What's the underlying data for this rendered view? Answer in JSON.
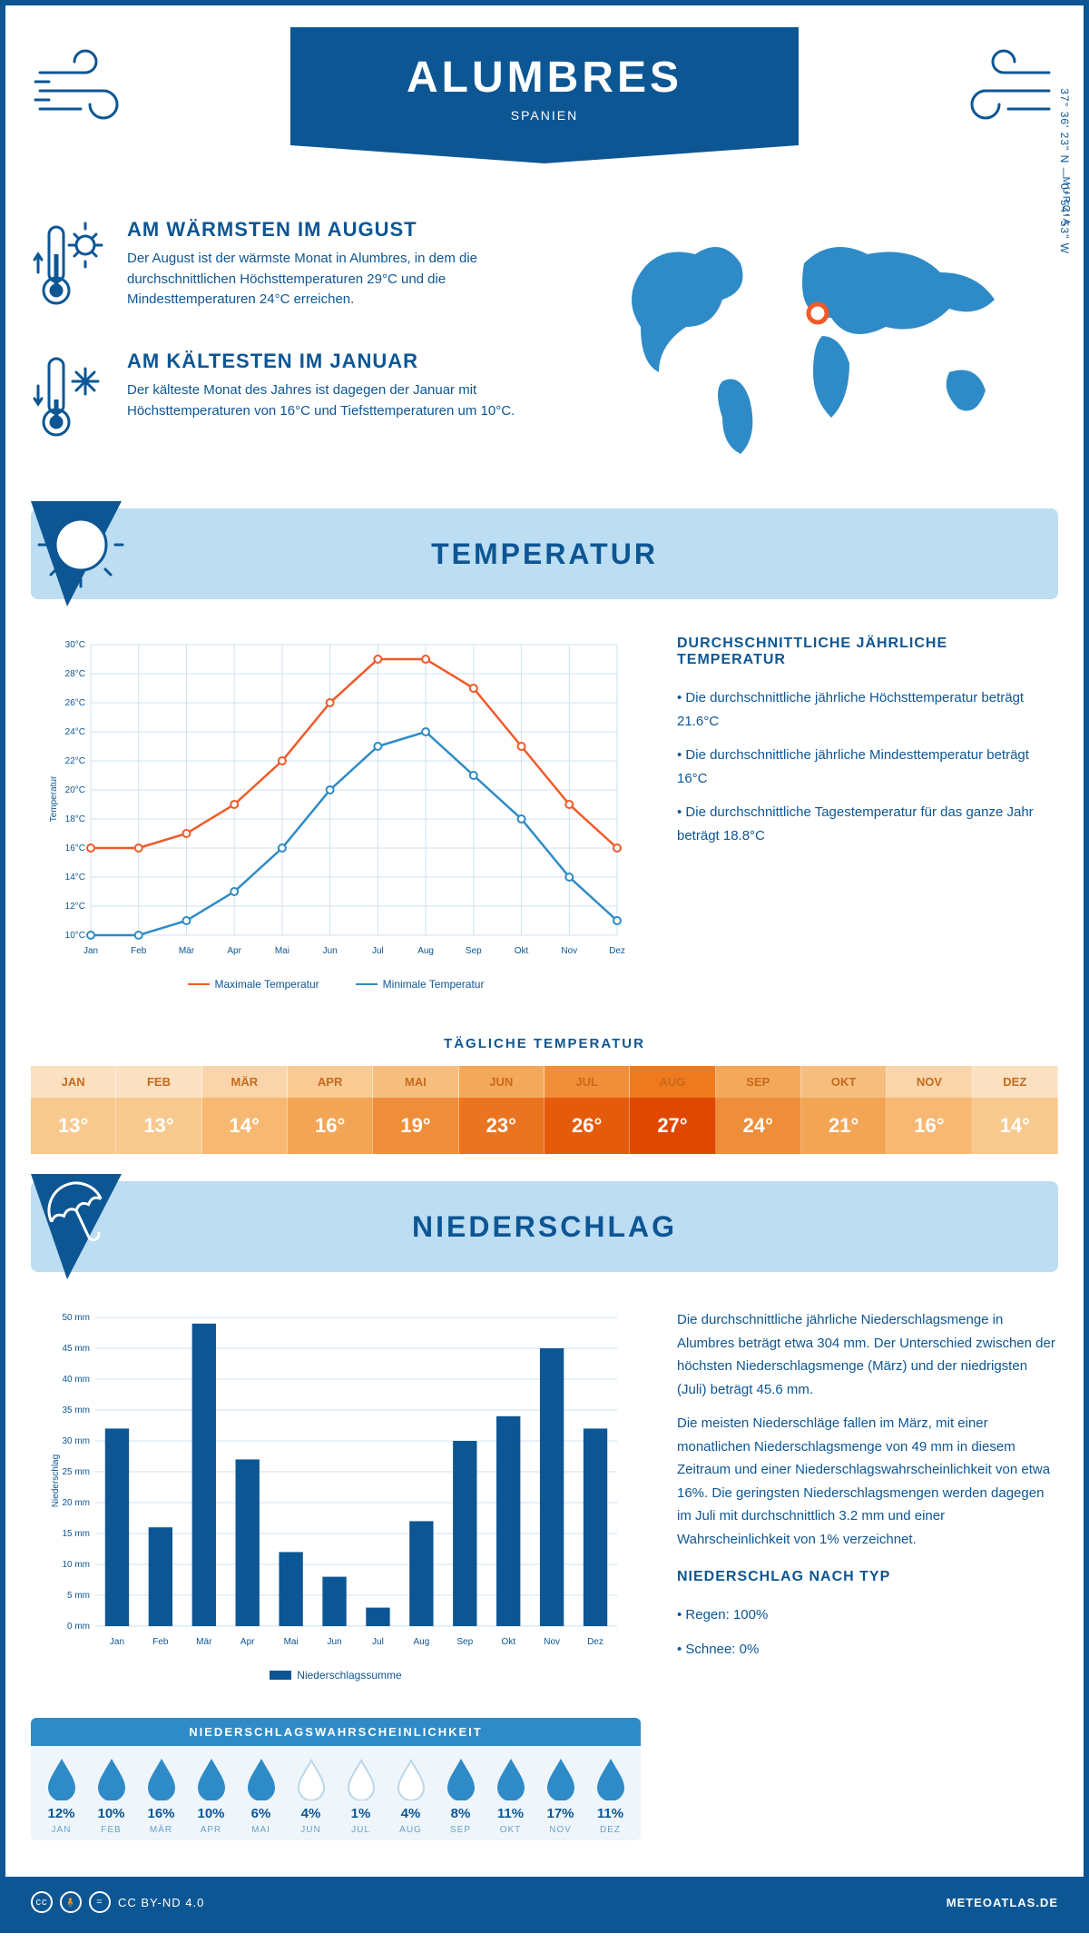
{
  "header": {
    "city": "ALUMBRES",
    "country": "SPANIEN",
    "region": "MURCIA",
    "coords": "37° 36' 23\" N — 0° 54' 53\" W"
  },
  "colors": {
    "primary": "#0d5694",
    "light_blue": "#bcddf2",
    "mid_blue": "#2e8bc7",
    "orange_line": "#f05a28",
    "blue_line": "#2e8bc7",
    "grid": "#d0e0ed"
  },
  "warmest": {
    "title": "AM WÄRMSTEN IM AUGUST",
    "text": "Der August ist der wärmste Monat in Alumbres, in dem die durchschnittlichen Höchsttemperaturen 29°C und die Mindesttemperaturen 24°C erreichen."
  },
  "coldest": {
    "title": "AM KÄLTESTEN IM JANUAR",
    "text": "Der kälteste Monat des Jahres ist dagegen der Januar mit Höchsttemperaturen von 16°C und Tiefsttemperaturen um 10°C."
  },
  "temperature": {
    "section_title": "TEMPERATUR",
    "months": [
      "Jan",
      "Feb",
      "Mär",
      "Apr",
      "Mai",
      "Jun",
      "Jul",
      "Aug",
      "Sep",
      "Okt",
      "Nov",
      "Dez"
    ],
    "max_series": [
      16,
      16,
      17,
      19,
      22,
      26,
      29,
      29,
      27,
      23,
      19,
      16
    ],
    "min_series": [
      10,
      10,
      11,
      13,
      16,
      20,
      23,
      24,
      21,
      18,
      14,
      11
    ],
    "y_axis": {
      "min": 10,
      "max": 30,
      "ticks": [
        10,
        12,
        14,
        16,
        18,
        20,
        22,
        24,
        26,
        28,
        30
      ],
      "tick_labels": [
        "10°C",
        "12°C",
        "14°C",
        "16°C",
        "18°C",
        "20°C",
        "22°C",
        "24°C",
        "26°C",
        "28°C",
        "30°C"
      ]
    },
    "y_label": "Temperatur",
    "legend_max": "Maximale Temperatur",
    "legend_min": "Minimale Temperatur",
    "stats_title": "DURCHSCHNITTLICHE JÄHRLICHE TEMPERATUR",
    "stats": [
      "• Die durchschnittliche jährliche Höchsttemperatur beträgt 21.6°C",
      "• Die durchschnittliche jährliche Mindesttemperatur beträgt 16°C",
      "• Die durchschnittliche Tagestemperatur für das ganze Jahr beträgt 18.8°C"
    ],
    "daily_title": "TÄGLICHE TEMPERATUR",
    "daily_months": [
      "JAN",
      "FEB",
      "MÄR",
      "APR",
      "MAI",
      "JUN",
      "JUL",
      "AUG",
      "SEP",
      "OKT",
      "NOV",
      "DEZ"
    ],
    "daily_values": [
      "13°",
      "13°",
      "14°",
      "16°",
      "19°",
      "23°",
      "26°",
      "27°",
      "24°",
      "21°",
      "16°",
      "14°"
    ],
    "daily_header_colors": [
      "#fbe0c1",
      "#fbe0c1",
      "#fad5ab",
      "#f8ca94",
      "#f6be7e",
      "#f4a85a",
      "#f18f38",
      "#ef7a1d",
      "#f4a85a",
      "#f6be7e",
      "#fad5ab",
      "#fbe0c1"
    ],
    "daily_value_colors": [
      "#f8c98e",
      "#f8c98e",
      "#f6b872",
      "#f3a556",
      "#ef8e3a",
      "#ea7420",
      "#e55b0c",
      "#e04800",
      "#ef8e3a",
      "#f3a556",
      "#f6b872",
      "#f8c98e"
    ]
  },
  "precip": {
    "section_title": "NIEDERSCHLAG",
    "months": [
      "Jan",
      "Feb",
      "Mär",
      "Apr",
      "Mai",
      "Jun",
      "Jul",
      "Aug",
      "Sep",
      "Okt",
      "Nov",
      "Dez"
    ],
    "values_mm": [
      32,
      16,
      49,
      27,
      12,
      8,
      3,
      17,
      30,
      34,
      45,
      32
    ],
    "y_axis": {
      "min": 0,
      "max": 50,
      "ticks": [
        0,
        5,
        10,
        15,
        20,
        25,
        30,
        35,
        40,
        45,
        50
      ],
      "tick_labels": [
        "0 mm",
        "5 mm",
        "10 mm",
        "15 mm",
        "20 mm",
        "25 mm",
        "30 mm",
        "35 mm",
        "40 mm",
        "45 mm",
        "50 mm"
      ]
    },
    "y_label": "Niederschlag",
    "legend": "Niederschlagssumme",
    "bar_color": "#0d5694",
    "text1": "Die durchschnittliche jährliche Niederschlagsmenge in Alumbres beträgt etwa 304 mm. Der Unterschied zwischen der höchsten Niederschlagsmenge (März) und der niedrigsten (Juli) beträgt 45.6 mm.",
    "text2": "Die meisten Niederschläge fallen im März, mit einer monatlichen Niederschlagsmenge von 49 mm in diesem Zeitraum und einer Niederschlagswahrscheinlichkeit von etwa 16%. Die geringsten Niederschlagsmengen werden dagegen im Juli mit durchschnittlich 3.2 mm und einer Wahrscheinlichkeit von 1% verzeichnet.",
    "type_title": "NIEDERSCHLAG NACH TYP",
    "type_lines": [
      "• Regen: 100%",
      "• Schnee: 0%"
    ],
    "prob_title": "NIEDERSCHLAGSWAHRSCHEINLICHKEIT",
    "prob_pct": [
      "12%",
      "10%",
      "16%",
      "10%",
      "6%",
      "4%",
      "1%",
      "4%",
      "8%",
      "11%",
      "17%",
      "11%"
    ],
    "prob_months": [
      "JAN",
      "FEB",
      "MÄR",
      "APR",
      "MAI",
      "JUN",
      "JUL",
      "AUG",
      "SEP",
      "OKT",
      "NOV",
      "DEZ"
    ],
    "prob_filled": [
      true,
      true,
      true,
      true,
      true,
      false,
      false,
      false,
      true,
      true,
      true,
      true
    ]
  },
  "footer": {
    "license": "CC BY-ND 4.0",
    "site": "METEOATLAS.DE"
  }
}
